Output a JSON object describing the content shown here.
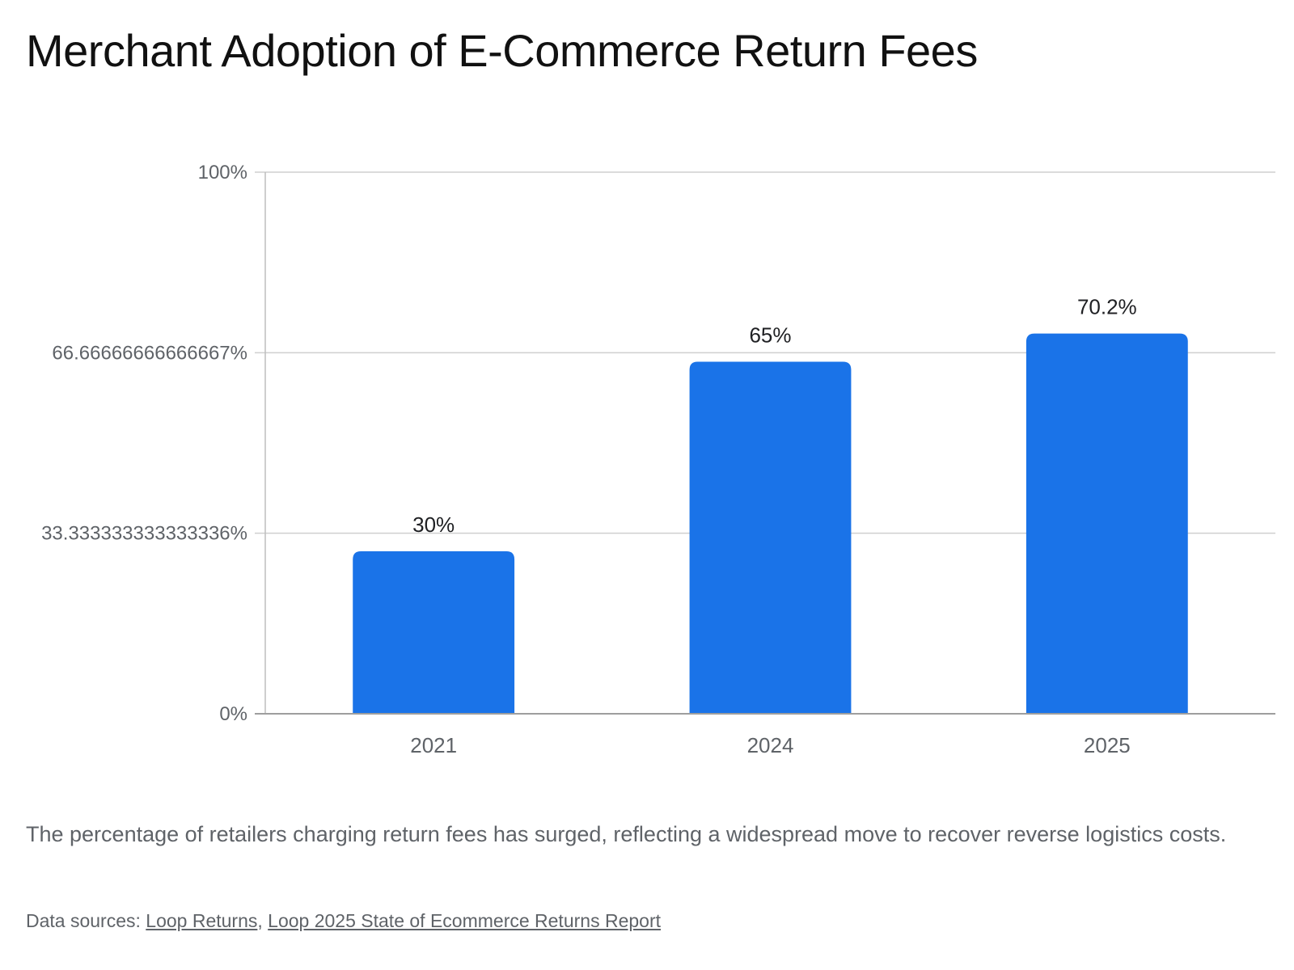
{
  "chart_data": {
    "type": "bar",
    "title": "Merchant Adoption of E-Commerce Return Fees",
    "categories": [
      "2021",
      "2024",
      "2025"
    ],
    "values": [
      30,
      65,
      70.2
    ],
    "value_labels": [
      "30%",
      "65%",
      "70.2%"
    ],
    "ylim": [
      0,
      100
    ],
    "yticks": [
      0,
      33.333333333333336,
      66.66666666666667,
      100
    ],
    "ytick_labels": [
      "0%",
      "33.333333333333336%",
      "66.66666666666667%",
      "100%"
    ],
    "xlabel": "",
    "ylabel": "",
    "grid": true,
    "bar_color": "#1a73e8"
  },
  "description": "The percentage of retailers charging return fees has surged, reflecting a widespread move to recover reverse logistics costs.",
  "sources": {
    "prefix": "Data sources: ",
    "separator": ", ",
    "links": [
      "Loop Returns",
      "Loop 2025 State of Ecommerce Returns Report"
    ]
  }
}
